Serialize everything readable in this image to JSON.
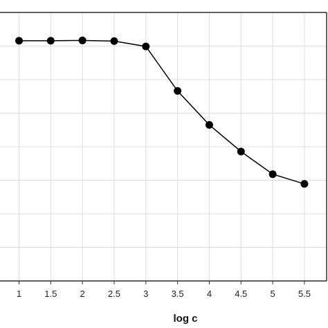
{
  "chart_data": {
    "type": "line",
    "xlabel": "log c",
    "x_ticks": [
      "1",
      "1.5",
      "2",
      "2.5",
      "3",
      "3.5",
      "4",
      "4.5",
      "5",
      "5.5"
    ],
    "x": [
      1,
      1.5,
      2,
      2.5,
      3,
      3.5,
      4,
      4.5,
      5,
      5.5
    ],
    "y": [
      0.885,
      0.885,
      0.887,
      0.883,
      0.85,
      0.575,
      0.365,
      0.2,
      0.06,
      0.0
    ],
    "xlim": [
      0.7,
      5.85
    ],
    "ylim": [
      -0.6,
      1.06
    ],
    "grid": true,
    "marker": "circle",
    "colors": {
      "line": "#000000",
      "marker": "#000000",
      "grid": "#dddddd",
      "frame": "#000000"
    }
  }
}
